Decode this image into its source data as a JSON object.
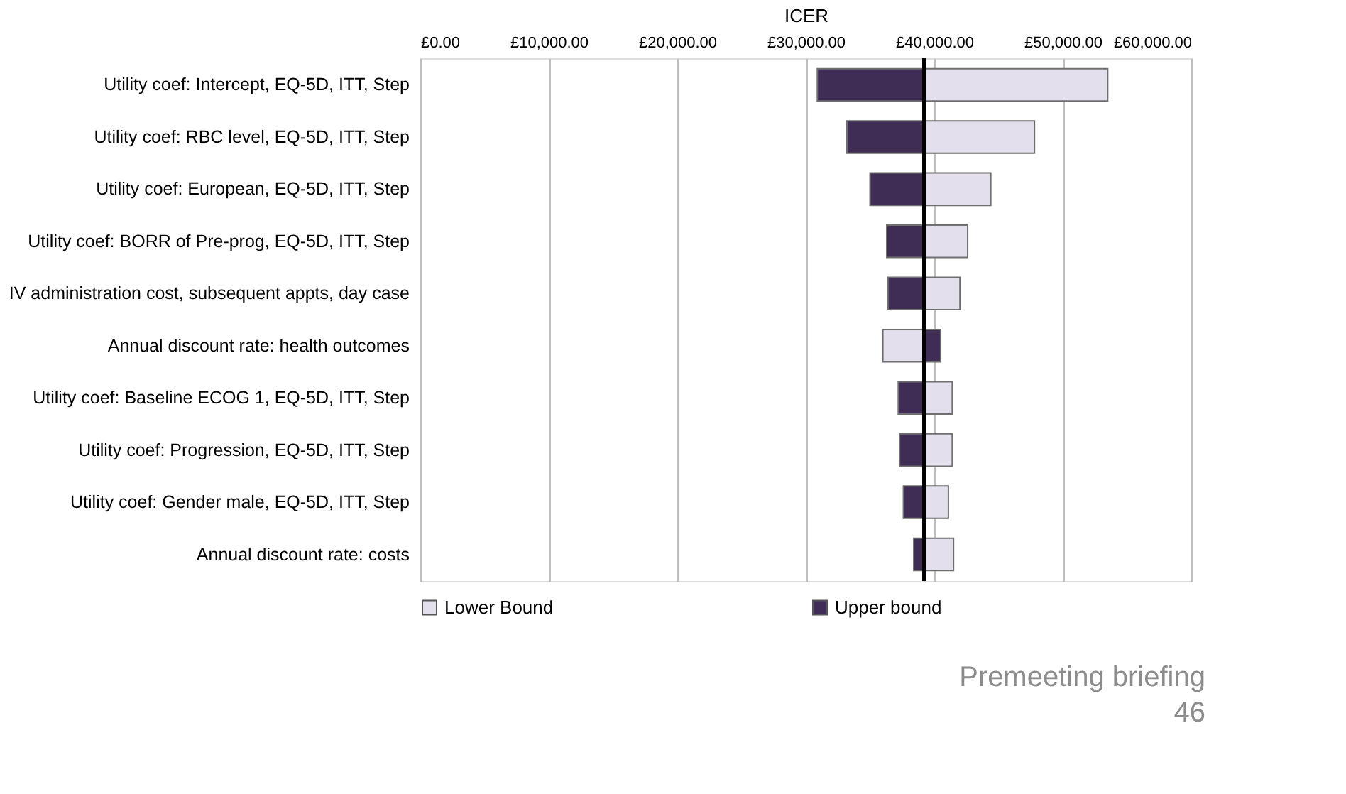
{
  "chart_data": {
    "type": "bar",
    "orientation": "horizontal",
    "xlabel": "ICER",
    "categories": [
      "Utility coef: Intercept, EQ-5D, ITT, Step",
      "Utility coef: RBC level, EQ-5D, ITT,  Step",
      "Utility coef: European, EQ-5D, ITT, Step",
      "Utility coef: BORR of Pre-prog, EQ-5D, ITT, Step",
      "IV administration cost, subsequent appts, day case",
      "Annual discount rate: health outcomes",
      "Utility coef: Baseline ECOG 1, EQ-5D, ITT, Step",
      "Utility coef: Progression, EQ-5D, ITT, Step",
      "Utility coef: Gender male, EQ-5D, ITT, Step",
      "Annual discount rate: costs"
    ],
    "series": [
      {
        "name": "Lower Bound",
        "color": "#e4dfec",
        "base": [
          39200,
          39200,
          39200,
          39200,
          39200,
          39200,
          39200,
          39200,
          39200,
          39200
        ],
        "values": [
          14300,
          8600,
          5200,
          3400,
          2800,
          -3200,
          2200,
          2200,
          1900,
          2300
        ]
      },
      {
        "name": "Upper bound",
        "color": "#3f2d55",
        "base": [
          39200,
          39200,
          39200,
          39200,
          39200,
          39200,
          39200,
          39200,
          39200,
          39200
        ],
        "values": [
          -8300,
          -6000,
          -4200,
          -2900,
          -2800,
          1300,
          -2000,
          -1900,
          -1600,
          -800
        ]
      }
    ],
    "xlim": [
      0,
      60000
    ],
    "xticks": [
      {
        "value": 0,
        "label": "£0.00"
      },
      {
        "value": 10000,
        "label": "£10,000.00"
      },
      {
        "value": 20000,
        "label": "£20,000.00"
      },
      {
        "value": 30000,
        "label": "£30,000.00"
      },
      {
        "value": 40000,
        "label": "£40,000.00"
      },
      {
        "value": 50000,
        "label": "£50,000.00"
      },
      {
        "value": 60000,
        "label": "£60,000.00"
      }
    ],
    "ref_lines": [
      {
        "axis": "x",
        "value": 39200,
        "label": null,
        "color": "#000000"
      }
    ],
    "grid": "x",
    "legend": "bottom",
    "annotations": [
      "Premeeting briefing",
      "46"
    ]
  }
}
